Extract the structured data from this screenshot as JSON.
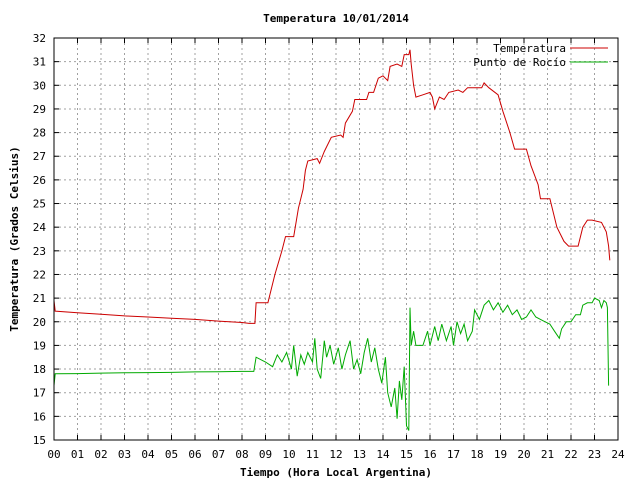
{
  "chart_data": {
    "type": "line",
    "title": "Temperatura 10/01/2014",
    "xlabel": "Tiempo (Hora Local Argentina)",
    "ylabel": "Temperatura (Grados Celsius)",
    "xlim": [
      0,
      24
    ],
    "ylim": [
      15,
      32
    ],
    "x_ticks": [
      "00",
      "01",
      "02",
      "03",
      "04",
      "05",
      "06",
      "07",
      "08",
      "09",
      "10",
      "11",
      "12",
      "13",
      "14",
      "15",
      "16",
      "17",
      "18",
      "19",
      "20",
      "21",
      "22",
      "23",
      "24"
    ],
    "y_ticks": [
      "15",
      "16",
      "17",
      "18",
      "19",
      "20",
      "21",
      "22",
      "23",
      "24",
      "25",
      "26",
      "27",
      "28",
      "29",
      "30",
      "31",
      "32"
    ],
    "grid": true,
    "legend_position": "top-right",
    "series": [
      {
        "name": "Temperatura",
        "color": "#cc0000",
        "points": [
          [
            0.0,
            20.9
          ],
          [
            0.05,
            20.45
          ],
          [
            1,
            20.38
          ],
          [
            2,
            20.32
          ],
          [
            3,
            20.25
          ],
          [
            4,
            20.2
          ],
          [
            5,
            20.15
          ],
          [
            6,
            20.1
          ],
          [
            7,
            20.03
          ],
          [
            8,
            19.97
          ],
          [
            8.3,
            19.93
          ],
          [
            8.55,
            19.93
          ],
          [
            8.6,
            20.8
          ],
          [
            9.1,
            20.8
          ],
          [
            9.4,
            22.0
          ],
          [
            9.7,
            23.0
          ],
          [
            9.85,
            23.6
          ],
          [
            10.2,
            23.6
          ],
          [
            10.4,
            24.8
          ],
          [
            10.6,
            25.6
          ],
          [
            10.7,
            26.4
          ],
          [
            10.8,
            26.8
          ],
          [
            11.2,
            26.9
          ],
          [
            11.3,
            26.7
          ],
          [
            11.5,
            27.2
          ],
          [
            11.8,
            27.8
          ],
          [
            12.2,
            27.9
          ],
          [
            12.3,
            27.8
          ],
          [
            12.4,
            28.4
          ],
          [
            12.7,
            28.9
          ],
          [
            12.8,
            29.4
          ],
          [
            13.3,
            29.4
          ],
          [
            13.4,
            29.7
          ],
          [
            13.6,
            29.7
          ],
          [
            13.8,
            30.3
          ],
          [
            14.0,
            30.4
          ],
          [
            14.2,
            30.2
          ],
          [
            14.3,
            30.8
          ],
          [
            14.6,
            30.9
          ],
          [
            14.8,
            30.8
          ],
          [
            14.9,
            31.3
          ],
          [
            15.1,
            31.3
          ],
          [
            15.15,
            31.5
          ],
          [
            15.2,
            30.9
          ],
          [
            15.3,
            30.0
          ],
          [
            15.4,
            29.5
          ],
          [
            15.7,
            29.6
          ],
          [
            16.0,
            29.7
          ],
          [
            16.1,
            29.5
          ],
          [
            16.2,
            29.0
          ],
          [
            16.4,
            29.5
          ],
          [
            16.6,
            29.4
          ],
          [
            16.8,
            29.7
          ],
          [
            17.2,
            29.8
          ],
          [
            17.4,
            29.7
          ],
          [
            17.6,
            29.9
          ],
          [
            18.2,
            29.9
          ],
          [
            18.3,
            30.1
          ],
          [
            18.5,
            29.9
          ],
          [
            18.9,
            29.6
          ],
          [
            19.1,
            28.9
          ],
          [
            19.4,
            28.0
          ],
          [
            19.6,
            27.3
          ],
          [
            20.1,
            27.3
          ],
          [
            20.3,
            26.6
          ],
          [
            20.6,
            25.8
          ],
          [
            20.7,
            25.2
          ],
          [
            21.1,
            25.2
          ],
          [
            21.4,
            24.0
          ],
          [
            21.7,
            23.4
          ],
          [
            21.9,
            23.2
          ],
          [
            22.3,
            23.2
          ],
          [
            22.5,
            24.0
          ],
          [
            22.7,
            24.3
          ],
          [
            22.9,
            24.3
          ],
          [
            23.3,
            24.2
          ],
          [
            23.5,
            23.8
          ],
          [
            23.6,
            23.2
          ],
          [
            23.65,
            22.6
          ]
        ]
      },
      {
        "name": "Punto de Rocío",
        "color": "#00aa00",
        "points": [
          [
            0.0,
            17.3
          ],
          [
            0.05,
            17.8
          ],
          [
            1,
            17.81
          ],
          [
            2,
            17.83
          ],
          [
            3,
            17.84
          ],
          [
            4,
            17.85
          ],
          [
            5,
            17.86
          ],
          [
            6,
            17.88
          ],
          [
            7,
            17.89
          ],
          [
            8,
            17.9
          ],
          [
            8.5,
            17.9
          ],
          [
            8.6,
            18.5
          ],
          [
            9.0,
            18.3
          ],
          [
            9.3,
            18.1
          ],
          [
            9.5,
            18.6
          ],
          [
            9.7,
            18.3
          ],
          [
            9.9,
            18.7
          ],
          [
            10.1,
            18.0
          ],
          [
            10.2,
            19.0
          ],
          [
            10.35,
            17.7
          ],
          [
            10.5,
            18.6
          ],
          [
            10.65,
            18.2
          ],
          [
            10.8,
            18.7
          ],
          [
            11.0,
            18.3
          ],
          [
            11.1,
            19.3
          ],
          [
            11.2,
            18.0
          ],
          [
            11.35,
            17.6
          ],
          [
            11.5,
            19.2
          ],
          [
            11.6,
            18.5
          ],
          [
            11.75,
            19.0
          ],
          [
            11.9,
            18.2
          ],
          [
            12.1,
            18.9
          ],
          [
            12.25,
            18.0
          ],
          [
            12.4,
            18.6
          ],
          [
            12.6,
            19.2
          ],
          [
            12.75,
            18.0
          ],
          [
            12.9,
            18.4
          ],
          [
            13.05,
            17.8
          ],
          [
            13.2,
            18.7
          ],
          [
            13.35,
            19.3
          ],
          [
            13.5,
            18.3
          ],
          [
            13.65,
            18.9
          ],
          [
            13.8,
            18.0
          ],
          [
            13.95,
            17.4
          ],
          [
            14.1,
            18.5
          ],
          [
            14.2,
            17.0
          ],
          [
            14.35,
            16.4
          ],
          [
            14.5,
            17.2
          ],
          [
            14.6,
            15.9
          ],
          [
            14.7,
            17.5
          ],
          [
            14.8,
            16.7
          ],
          [
            14.9,
            18.1
          ],
          [
            15.0,
            15.6
          ],
          [
            15.1,
            15.4
          ],
          [
            15.15,
            20.6
          ],
          [
            15.2,
            19.0
          ],
          [
            15.3,
            19.6
          ],
          [
            15.4,
            19.0
          ],
          [
            15.7,
            19.0
          ],
          [
            15.9,
            19.6
          ],
          [
            16.0,
            19.0
          ],
          [
            16.2,
            19.8
          ],
          [
            16.35,
            19.2
          ],
          [
            16.5,
            19.9
          ],
          [
            16.7,
            19.2
          ],
          [
            16.9,
            19.8
          ],
          [
            17.0,
            19.0
          ],
          [
            17.15,
            20.0
          ],
          [
            17.3,
            19.5
          ],
          [
            17.45,
            19.9
          ],
          [
            17.6,
            19.2
          ],
          [
            17.8,
            19.6
          ],
          [
            17.9,
            20.5
          ],
          [
            18.1,
            20.1
          ],
          [
            18.3,
            20.7
          ],
          [
            18.5,
            20.9
          ],
          [
            18.7,
            20.5
          ],
          [
            18.9,
            20.8
          ],
          [
            19.1,
            20.4
          ],
          [
            19.3,
            20.7
          ],
          [
            19.5,
            20.3
          ],
          [
            19.7,
            20.5
          ],
          [
            19.9,
            20.1
          ],
          [
            20.1,
            20.2
          ],
          [
            20.3,
            20.5
          ],
          [
            20.5,
            20.2
          ],
          [
            20.7,
            20.1
          ],
          [
            20.9,
            20.0
          ],
          [
            21.1,
            19.9
          ],
          [
            21.3,
            19.6
          ],
          [
            21.5,
            19.3
          ],
          [
            21.6,
            19.7
          ],
          [
            21.8,
            20.0
          ],
          [
            22.0,
            20.0
          ],
          [
            22.2,
            20.3
          ],
          [
            22.4,
            20.3
          ],
          [
            22.5,
            20.7
          ],
          [
            22.7,
            20.8
          ],
          [
            22.9,
            20.8
          ],
          [
            23.0,
            21.0
          ],
          [
            23.2,
            20.9
          ],
          [
            23.3,
            20.6
          ],
          [
            23.4,
            20.9
          ],
          [
            23.5,
            20.8
          ],
          [
            23.55,
            20.6
          ],
          [
            23.6,
            17.3
          ]
        ]
      }
    ]
  }
}
